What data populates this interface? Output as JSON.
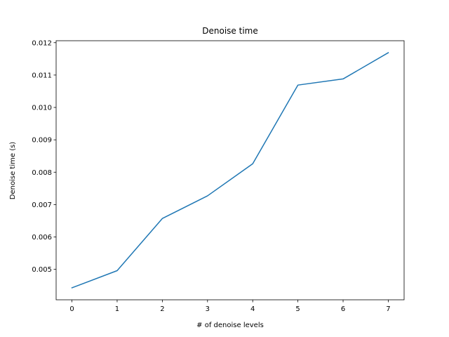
{
  "chart_data": {
    "type": "line",
    "title": "Denoise time",
    "xlabel": "# of denoise levels",
    "ylabel": "Denoise time (s)",
    "x": [
      0,
      1,
      2,
      3,
      4,
      5,
      6,
      7
    ],
    "series": [
      {
        "values": [
          0.00443,
          0.00496,
          0.00657,
          0.00727,
          0.00826,
          0.01069,
          0.01088,
          0.01169
        ],
        "color": "#1f77b4"
      }
    ],
    "xticks": [
      "0",
      "1",
      "2",
      "3",
      "4",
      "5",
      "6",
      "7"
    ],
    "yticks": [
      "0.005",
      "0.006",
      "0.007",
      "0.008",
      "0.009",
      "0.010",
      "0.011",
      "0.012"
    ],
    "ytick_values": [
      0.005,
      0.006,
      0.007,
      0.008,
      0.009,
      0.01,
      0.011,
      0.012
    ],
    "xlim": [
      -0.35,
      7.35
    ],
    "ylim": [
      0.00406,
      0.01206
    ],
    "grid": false,
    "legend": "none"
  }
}
